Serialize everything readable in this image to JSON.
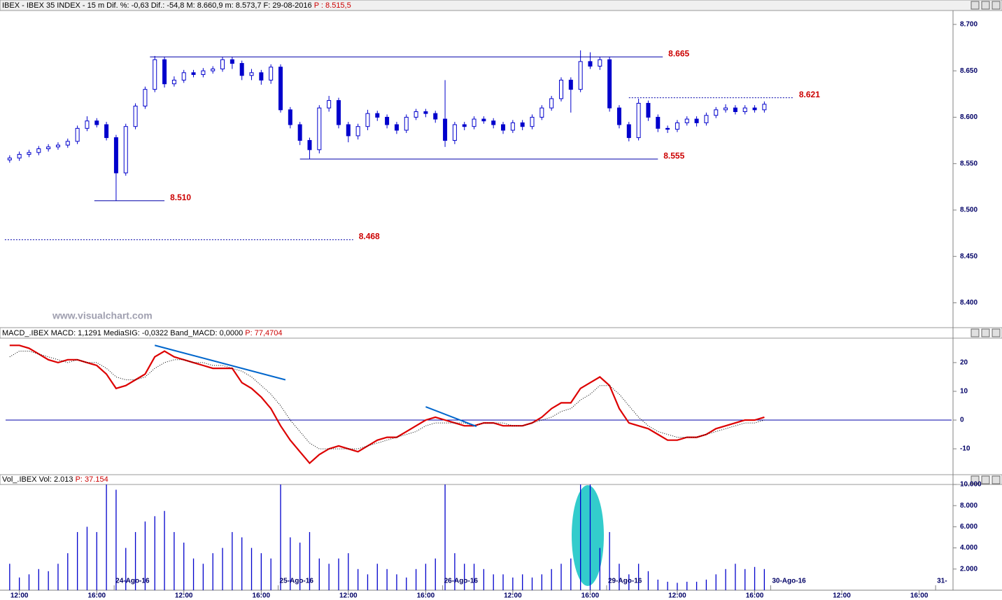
{
  "watermark": "www.visualchart.com",
  "chart_data": [
    {
      "type": "candlestick",
      "header": "IBEX - IBEX 35 INDEX - 15 m  Dif. %: -0,63  Dif.: -54,8  M: 8.660,9  m: 8.573,7  F: 29-08-2016",
      "header_value": "P : 8.515,5",
      "color": "#0000cc",
      "xlim": [
        0,
        197
      ],
      "ylim": [
        8374,
        8715
      ],
      "yticks": [
        {
          "value": 8700,
          "label": "8.700"
        },
        {
          "value": 8650,
          "label": "8.650"
        },
        {
          "value": 8600,
          "label": "8.600"
        },
        {
          "value": 8550,
          "label": "8.550"
        },
        {
          "value": 8500,
          "label": "8.500"
        },
        {
          "value": 8450,
          "label": "8.450"
        },
        {
          "value": 8400,
          "label": "8.400"
        }
      ],
      "x": [
        2,
        4,
        6,
        8,
        10,
        12,
        14,
        16,
        18,
        20,
        22,
        24,
        26,
        28,
        30,
        32,
        34,
        36,
        38,
        40,
        42,
        44,
        46,
        48,
        50,
        52,
        54,
        56,
        58,
        60,
        62,
        64,
        66,
        68,
        70,
        72,
        74,
        76,
        78,
        80,
        82,
        84,
        86,
        88,
        90,
        92,
        94,
        96,
        98,
        100,
        102,
        104,
        106,
        108,
        110,
        112,
        114,
        116,
        118,
        120,
        122,
        124,
        126,
        128,
        130,
        132,
        134,
        136,
        138,
        140,
        142,
        144,
        146,
        148,
        150,
        152,
        154,
        156,
        158
      ],
      "open": [
        8554,
        8556,
        8560,
        8562,
        8566,
        8568,
        8570,
        8574,
        8588,
        8596,
        8592,
        8578,
        8540,
        8590,
        8612,
        8630,
        8662,
        8636,
        8640,
        8648,
        8646,
        8650,
        8652,
        8662,
        8658,
        8645,
        8648,
        8640,
        8654,
        8608,
        8592,
        8575,
        8565,
        8610,
        8618,
        8592,
        8580,
        8590,
        8604,
        8600,
        8592,
        8586,
        8600,
        8606,
        8604,
        8598,
        8575,
        8592,
        8590,
        8598,
        8596,
        8592,
        8586,
        8594,
        8590,
        8600,
        8610,
        8620,
        8640,
        8630,
        8660,
        8655,
        8662,
        8610,
        8592,
        8578,
        8615,
        8600,
        8588,
        8587,
        8594,
        8598,
        8594,
        8602,
        8608,
        8610,
        8606,
        8610,
        8608
      ],
      "high": [
        8559,
        8563,
        8565,
        8569,
        8571,
        8573,
        8577,
        8591,
        8601,
        8599,
        8595,
        8581,
        8593,
        8615,
        8633,
        8666,
        8665,
        8644,
        8651,
        8651,
        8653,
        8655,
        8665,
        8665,
        8661,
        8652,
        8651,
        8657,
        8657,
        8611,
        8595,
        8578,
        8613,
        8623,
        8621,
        8595,
        8593,
        8608,
        8607,
        8603,
        8595,
        8603,
        8609,
        8609,
        8607,
        8640,
        8595,
        8595,
        8601,
        8601,
        8599,
        8595,
        8597,
        8597,
        8603,
        8613,
        8623,
        8643,
        8643,
        8672,
        8670,
        8665,
        8665,
        8613,
        8595,
        8620,
        8618,
        8603,
        8591,
        8597,
        8601,
        8601,
        8605,
        8611,
        8614,
        8613,
        8613,
        8613,
        8617
      ],
      "low": [
        8551,
        8553,
        8557,
        8559,
        8563,
        8565,
        8567,
        8571,
        8585,
        8589,
        8575,
        8510,
        8537,
        8587,
        8609,
        8627,
        8632,
        8633,
        8637,
        8643,
        8643,
        8647,
        8649,
        8652,
        8640,
        8640,
        8635,
        8636,
        8605,
        8588,
        8570,
        8555,
        8561,
        8606,
        8588,
        8573,
        8576,
        8586,
        8596,
        8588,
        8582,
        8583,
        8597,
        8600,
        8594,
        8568,
        8571,
        8586,
        8587,
        8593,
        8588,
        8582,
        8583,
        8586,
        8587,
        8597,
        8607,
        8617,
        8605,
        8627,
        8652,
        8651,
        8606,
        8588,
        8574,
        8575,
        8596,
        8584,
        8583,
        8584,
        8591,
        8590,
        8591,
        8599,
        8605,
        8603,
        8603,
        8605,
        8605
      ],
      "close": [
        8556,
        8560,
        8562,
        8566,
        8568,
        8570,
        8574,
        8588,
        8596,
        8592,
        8578,
        8540,
        8590,
        8612,
        8630,
        8662,
        8636,
        8640,
        8648,
        8646,
        8650,
        8652,
        8662,
        8658,
        8645,
        8648,
        8640,
        8654,
        8608,
        8592,
        8575,
        8565,
        8610,
        8618,
        8592,
        8580,
        8590,
        8604,
        8600,
        8592,
        8586,
        8600,
        8606,
        8604,
        8598,
        8575,
        8592,
        8590,
        8598,
        8596,
        8592,
        8586,
        8594,
        8590,
        8600,
        8610,
        8620,
        8640,
        8630,
        8660,
        8655,
        8662,
        8610,
        8592,
        8578,
        8615,
        8600,
        8588,
        8587,
        8594,
        8598,
        8594,
        8602,
        8608,
        8610,
        8606,
        8610,
        8608,
        8614
      ],
      "levels": [
        {
          "value": 8665,
          "label": "8.665",
          "x": [
            31,
            137
          ],
          "dashed": false
        },
        {
          "value": 8621,
          "label": "8.621",
          "x": [
            130,
            164
          ],
          "dashed": true
        },
        {
          "value": 8555,
          "label": "8.555",
          "x": [
            62,
            136
          ],
          "dashed": false
        },
        {
          "value": 8510,
          "label": "8.510",
          "x": [
            19.5,
            34
          ],
          "dashed": false
        },
        {
          "value": 8468,
          "label": "8.468",
          "x": [
            1,
            73
          ],
          "dashed": true
        }
      ]
    },
    {
      "type": "line",
      "header": "MACD_.IBEX MACD: 1,1291  MediaSIG: -0,0322  Band_MACD: 0,0000",
      "header_value": "P: 77,4704",
      "xlim": [
        0,
        197
      ],
      "ylim": [
        -19,
        28.5
      ],
      "yticks": [
        20,
        10,
        0,
        -10
      ],
      "zero_line": true,
      "x": [
        2,
        4,
        6,
        8,
        10,
        12,
        14,
        16,
        18,
        20,
        22,
        24,
        26,
        28,
        30,
        32,
        34,
        36,
        38,
        40,
        42,
        44,
        46,
        48,
        50,
        52,
        54,
        56,
        58,
        60,
        62,
        64,
        66,
        68,
        70,
        72,
        74,
        76,
        78,
        80,
        82,
        84,
        86,
        88,
        90,
        92,
        94,
        96,
        98,
        100,
        102,
        104,
        106,
        108,
        110,
        112,
        114,
        116,
        118,
        120,
        122,
        124,
        126,
        128,
        130,
        132,
        134,
        136,
        138,
        140,
        142,
        144,
        146,
        148,
        150,
        152,
        154,
        156,
        158
      ],
      "series": [
        {
          "color": "#dd0000",
          "dashed": false,
          "values": [
            26,
            26,
            25,
            23,
            21,
            20,
            21,
            21,
            20,
            19,
            16,
            11,
            12,
            14,
            16,
            22,
            24,
            22,
            21,
            20,
            19,
            18,
            18,
            18,
            13,
            11,
            8,
            4,
            -2,
            -7,
            -11,
            -15,
            -12,
            -10,
            -9,
            -10,
            -11,
            -9,
            -7,
            -6,
            -6,
            -4,
            -2,
            0,
            1,
            0,
            -1,
            -2,
            -2,
            -1,
            -1,
            -2,
            -2,
            -2,
            -1,
            1,
            4,
            6,
            6,
            11,
            13,
            15,
            12,
            4,
            -1,
            -2,
            -3,
            -5,
            -7,
            -7,
            -6,
            -6,
            -5,
            -3,
            -2,
            -1,
            0,
            0,
            1
          ]
        },
        {
          "color": "#000000",
          "dashed": true,
          "values": [
            22,
            24,
            24,
            23,
            22,
            21,
            20,
            21,
            20,
            20,
            18,
            15,
            14,
            14,
            15,
            18,
            20,
            21,
            21,
            20,
            20,
            19,
            19,
            18,
            17,
            15,
            12,
            9,
            5,
            0,
            -4,
            -8,
            -10,
            -10,
            -10,
            -10,
            -10,
            -9,
            -8,
            -7,
            -6,
            -5,
            -4,
            -2,
            -1,
            -1,
            -1,
            -1,
            -2,
            -1,
            -1,
            -1,
            -2,
            -2,
            -1,
            0,
            1,
            3,
            4,
            7,
            9,
            12,
            12,
            9,
            5,
            1,
            -2,
            -4,
            -5,
            -6,
            -6,
            -6,
            -5,
            -4,
            -3,
            -2,
            -1,
            -1,
            0
          ]
        }
      ],
      "trendlines": [
        {
          "x": [
            32,
            59
          ],
          "y": [
            26,
            14
          ]
        },
        {
          "x": [
            88,
            98.5
          ],
          "y": [
            4.6,
            -2.2
          ]
        }
      ]
    },
    {
      "type": "bar",
      "header": "Vol_.IBEX Vol: 2.013",
      "header_value": "P: 37.154",
      "color": "#0000cc",
      "xlim": [
        0,
        197
      ],
      "ylim": [
        0,
        10000
      ],
      "yticks": [
        {
          "value": 2000,
          "label": "2.000"
        },
        {
          "value": 4000,
          "label": "4.000"
        },
        {
          "value": 6000,
          "label": "6.000"
        },
        {
          "value": 8000,
          "label": "8.000"
        },
        {
          "value": 10000,
          "label": "10.000"
        }
      ],
      "x": [
        2,
        4,
        6,
        8,
        10,
        12,
        14,
        16,
        18,
        20,
        22,
        24,
        26,
        28,
        30,
        32,
        34,
        36,
        38,
        40,
        42,
        44,
        46,
        48,
        50,
        52,
        54,
        56,
        58,
        60,
        62,
        64,
        66,
        68,
        70,
        72,
        74,
        76,
        78,
        80,
        82,
        84,
        86,
        88,
        90,
        92,
        94,
        96,
        98,
        100,
        102,
        104,
        106,
        108,
        110,
        112,
        114,
        116,
        118,
        120,
        122,
        124,
        126,
        128,
        130,
        132,
        134,
        136,
        138,
        140,
        142,
        144,
        146,
        148,
        150,
        152,
        154,
        156,
        158
      ],
      "values": [
        2500,
        1200,
        1500,
        2000,
        1800,
        2500,
        3500,
        5500,
        6000,
        5500,
        10000,
        9500,
        4000,
        5500,
        6500,
        7000,
        7500,
        5500,
        4500,
        3000,
        2500,
        3500,
        4000,
        5500,
        5000,
        4000,
        3500,
        3000,
        10000,
        5000,
        4500,
        5500,
        3000,
        2500,
        3000,
        3500,
        2000,
        1500,
        2500,
        2000,
        1500,
        1200,
        2000,
        2500,
        3000,
        10000,
        3500,
        2500,
        2500,
        2000,
        1500,
        1500,
        1200,
        1500,
        1200,
        1500,
        2000,
        2500,
        3000,
        10000,
        10000,
        4000,
        5500,
        2500,
        1500,
        2500,
        1800,
        1000,
        800,
        700,
        800,
        800,
        1000,
        1500,
        2000,
        2500,
        2000,
        2200,
        2000
      ],
      "xticks": [
        {
          "value": 4,
          "label": "12:00"
        },
        {
          "value": 20,
          "label": "16:00"
        },
        {
          "value": 38,
          "label": "12:00"
        },
        {
          "value": 54,
          "label": "16:00"
        },
        {
          "value": 72,
          "label": "12:00"
        },
        {
          "value": 88,
          "label": "16:00"
        },
        {
          "value": 106,
          "label": "12:00"
        },
        {
          "value": 122,
          "label": "16:00"
        },
        {
          "value": 140,
          "label": "12:00"
        },
        {
          "value": 156,
          "label": "16:00"
        },
        {
          "value": 174,
          "label": "12:00"
        },
        {
          "value": 190,
          "label": "16:00"
        }
      ],
      "day_ticks": [
        {
          "value": 23.6,
          "label": "24-Ago-16"
        },
        {
          "value": 57.5,
          "label": "25-Ago-16"
        },
        {
          "value": 91.5,
          "label": "26-Ago-16"
        },
        {
          "value": 125.4,
          "label": "29-Ago-16"
        },
        {
          "value": 159.3,
          "label": "30-Ago-16"
        },
        {
          "value": 193.4,
          "label": "31-"
        }
      ]
    }
  ]
}
